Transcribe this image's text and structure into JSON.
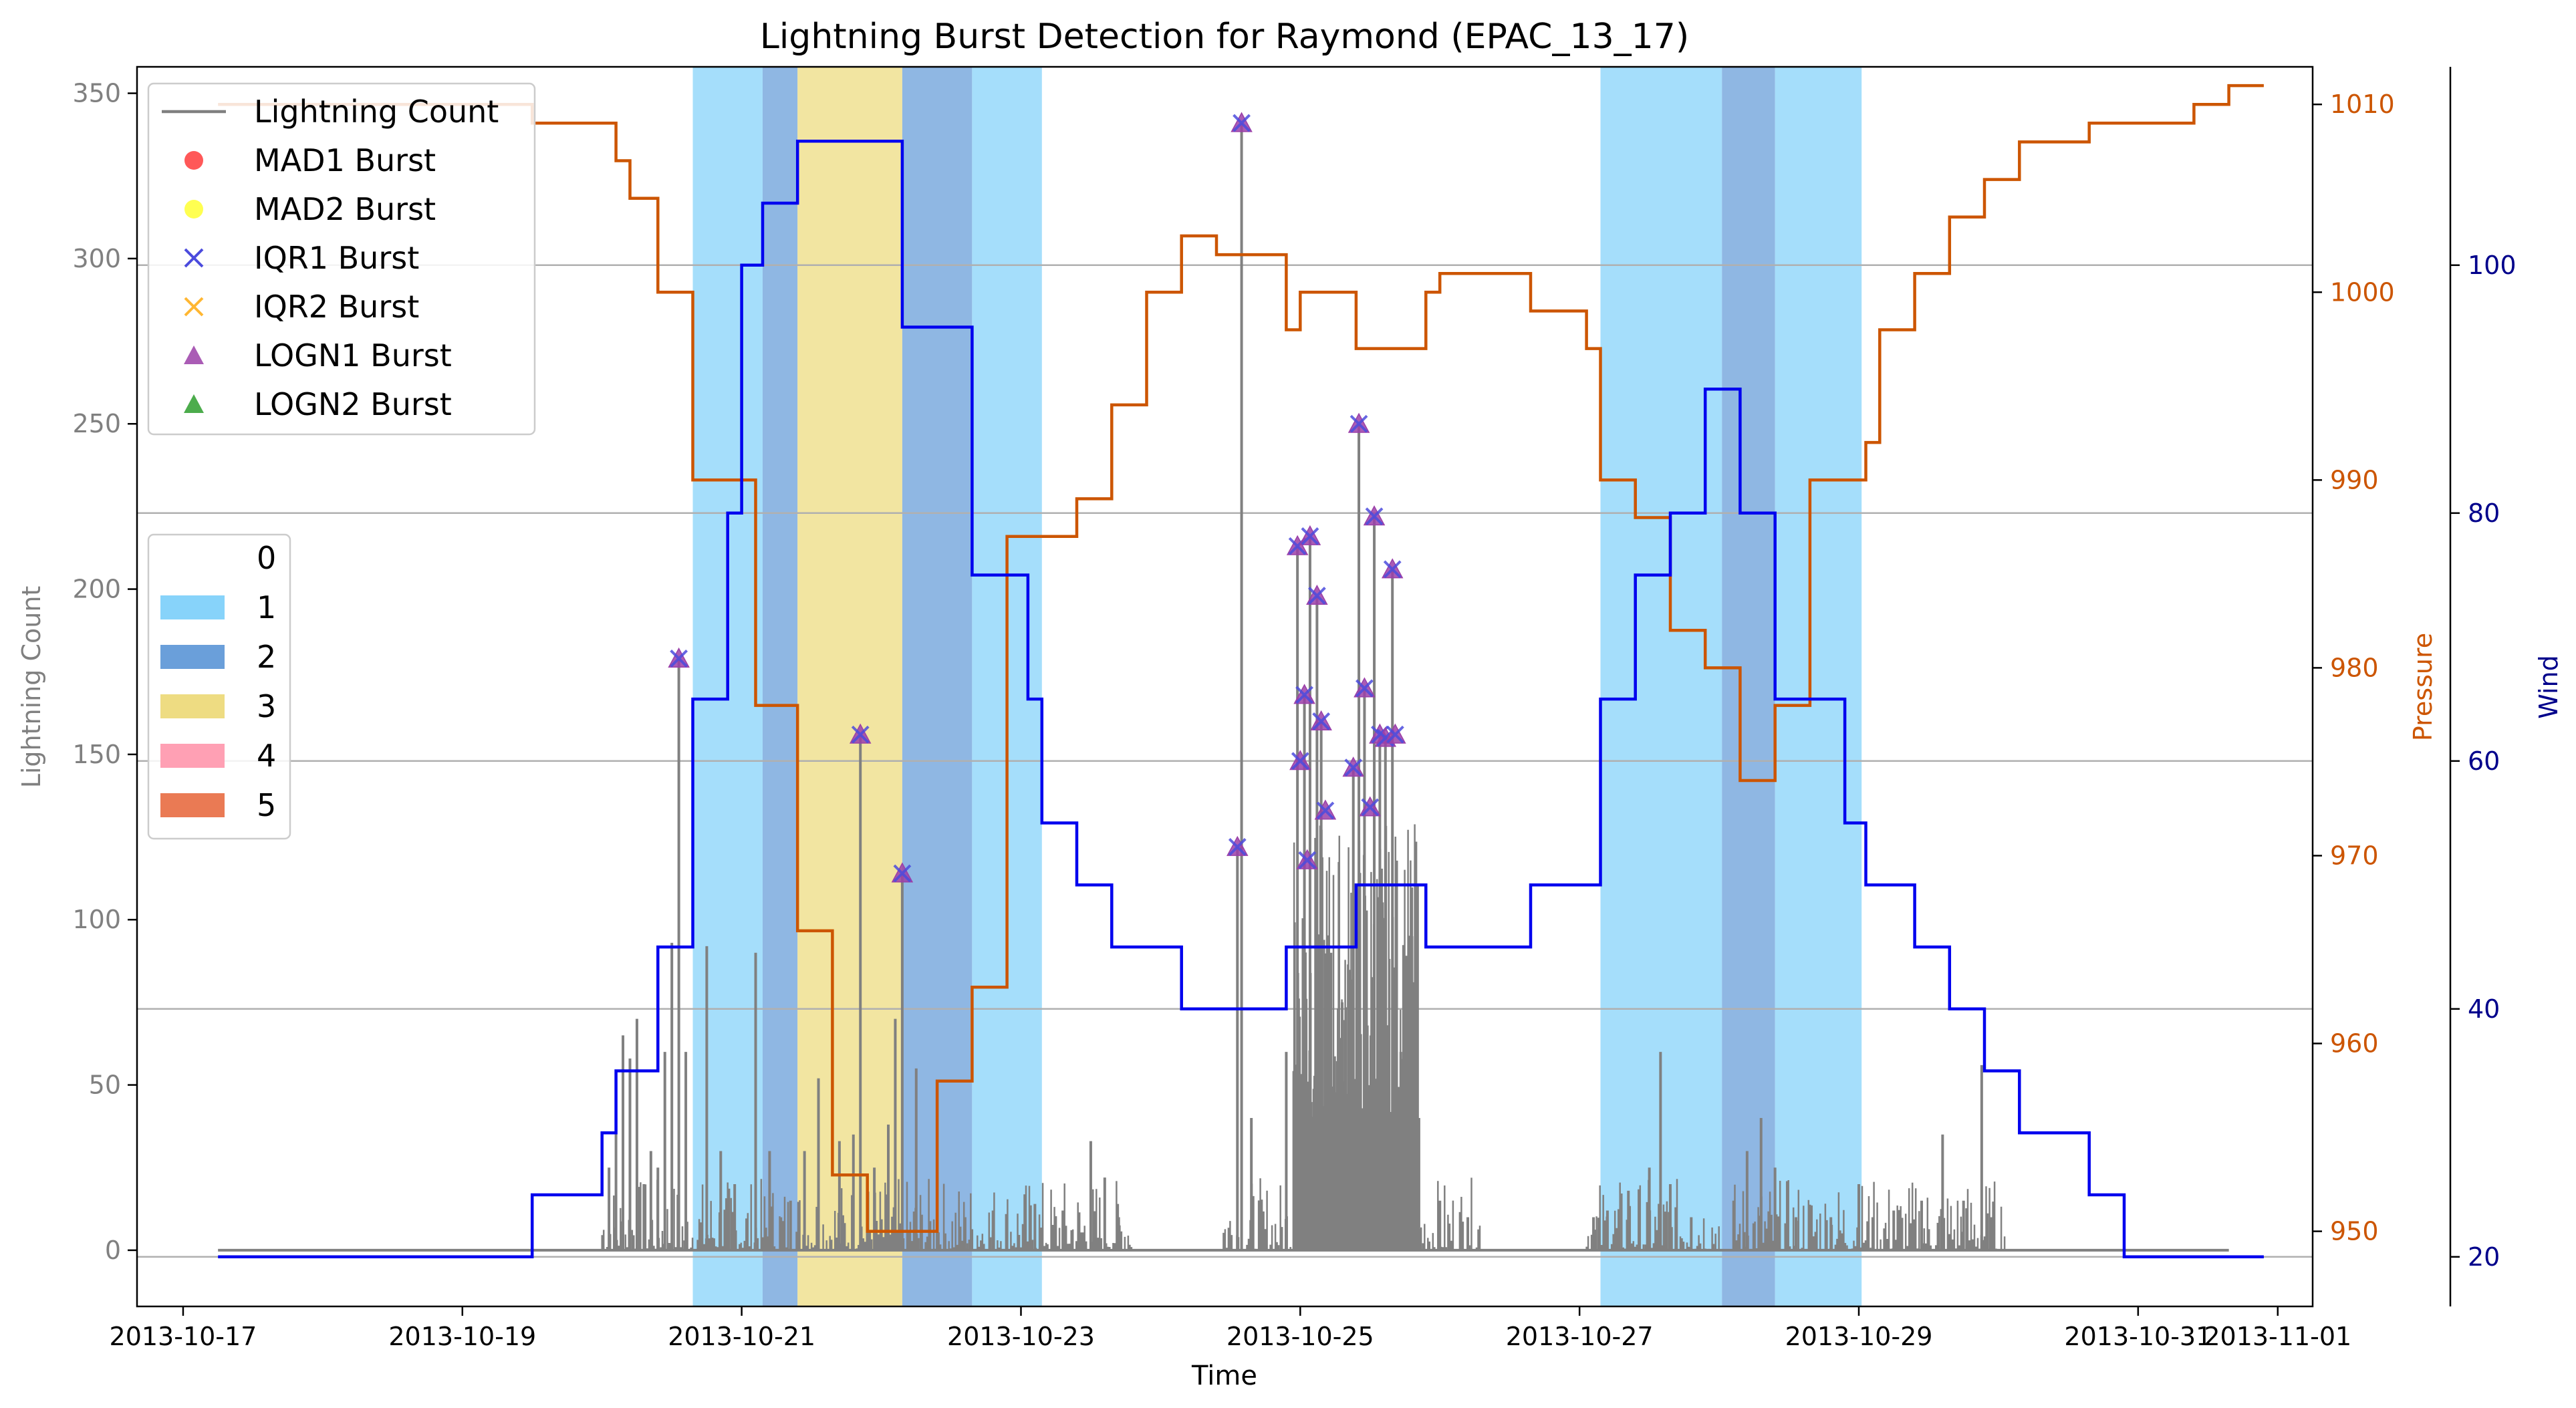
{
  "chart_data": {
    "type": "line",
    "title": "Lightning Burst Detection for Raymond (EPAC_13_17)",
    "xlabel": "Time",
    "ylabel_left": "Lightning Count",
    "ylabel_pressure": "Pressure",
    "ylabel_wind": "Wind",
    "x_ticks": [
      "2013-10-17",
      "2013-10-19",
      "2013-10-21",
      "2013-10-23",
      "2013-10-25",
      "2013-10-27",
      "2013-10-29",
      "2013-10-31",
      "2013-11-01"
    ],
    "x_tick_days": [
      17,
      19,
      21,
      23,
      25,
      27,
      29,
      31,
      32
    ],
    "xlim_days": [
      16.67,
      32.25
    ],
    "ylim_lightning": [
      -17,
      358
    ],
    "y_ticks_lightning": [
      0,
      50,
      100,
      150,
      200,
      250,
      300,
      350
    ],
    "ylim_pressure": [
      946,
      1012
    ],
    "y_ticks_pressure": [
      950,
      960,
      970,
      980,
      990,
      1000,
      1010
    ],
    "ylim_wind": [
      16,
      116
    ],
    "y_ticks_wind": [
      20,
      40,
      60,
      80,
      100
    ],
    "grid": "horizontal",
    "colors": {
      "lightning": "#808080",
      "pressure": "#cc5500",
      "wind": "#0000ee",
      "wind_axis": "#00008b",
      "band_1": "#87d3fa",
      "band_2": "#6a9fda",
      "band_3": "#eedc82",
      "band_4": "#ffa0b4",
      "band_5": "#ea7a54",
      "mad1": "#ff3b3b",
      "mad2": "#ffff33",
      "iqr1": "#4b4bdd",
      "iqr2": "#ffb732",
      "logn1": "#9b3fa8",
      "logn2": "#2d9d2d"
    },
    "legend_series": [
      "Lightning Count",
      "MAD1 Burst",
      "MAD2 Burst",
      "IQR1 Burst",
      "IQR2 Burst",
      "LOGN1 Burst",
      "LOGN2 Burst"
    ],
    "legend_series_placement": "upper-left",
    "legend_category": [
      "0",
      "1",
      "2",
      "3",
      "4",
      "5"
    ],
    "legend_category_placement": "center-left",
    "category_bands": [
      {
        "start": 20.65,
        "end": 21.15,
        "category": 1
      },
      {
        "start": 21.15,
        "end": 21.4,
        "category": 2
      },
      {
        "start": 21.4,
        "end": 22.15,
        "category": 3
      },
      {
        "start": 22.15,
        "end": 22.65,
        "category": 2
      },
      {
        "start": 22.65,
        "end": 23.15,
        "category": 1
      },
      {
        "start": 27.15,
        "end": 28.02,
        "category": 1
      },
      {
        "start": 28.02,
        "end": 28.4,
        "category": 2
      },
      {
        "start": 28.4,
        "end": 29.02,
        "category": 1
      }
    ],
    "pressure": {
      "x": [
        17.25,
        17.5,
        17.75,
        18.0,
        18.25,
        18.5,
        18.75,
        19.0,
        19.25,
        19.5,
        19.75,
        20.0,
        20.1,
        20.2,
        20.4,
        20.65,
        20.9,
        21.1,
        21.4,
        21.65,
        21.9,
        22.15,
        22.4,
        22.65,
        22.9,
        23.15,
        23.4,
        23.65,
        23.9,
        24.15,
        24.4,
        24.65,
        24.9,
        25.0,
        25.1,
        25.4,
        25.65,
        25.9,
        26.0,
        26.15,
        26.4,
        26.65,
        26.9,
        27.05,
        27.15,
        27.4,
        27.65,
        27.9,
        28.15,
        28.4,
        28.65,
        28.9,
        29.05,
        29.15,
        29.4,
        29.65,
        29.9,
        30.15,
        30.4,
        30.65,
        30.9,
        31.15,
        31.4,
        31.65,
        31.9
      ],
      "y": [
        1010,
        1010,
        1010,
        1010,
        1010,
        1010,
        1010,
        1010,
        1010,
        1009,
        1009,
        1009,
        1007,
        1005,
        1000,
        990,
        990,
        978,
        966,
        953,
        950,
        950,
        958,
        963,
        987,
        987,
        989,
        994,
        1000,
        1003,
        1002,
        1002,
        998,
        1000,
        1000,
        997,
        997,
        1000,
        1001,
        1001,
        1001,
        999,
        999,
        997,
        990,
        988,
        982,
        980,
        974,
        978,
        990,
        990,
        992,
        998,
        1001,
        1004,
        1006,
        1008,
        1008,
        1009,
        1009,
        1009,
        1010,
        1011,
        1011
      ],
      "end_x": 31.65
    },
    "wind": {
      "x": [
        17.25,
        19.5,
        19.75,
        20.0,
        20.1,
        20.2,
        20.4,
        20.65,
        20.9,
        21.0,
        21.15,
        21.4,
        21.65,
        22.15,
        22.65,
        23.05,
        23.15,
        23.4,
        23.65,
        23.9,
        24.15,
        24.9,
        25.4,
        25.65,
        25.9,
        26.15,
        26.65,
        27.15,
        27.4,
        27.65,
        27.9,
        28.15,
        28.4,
        28.65,
        28.9,
        29.05,
        29.15,
        29.4,
        29.65,
        29.9,
        30.15,
        30.4,
        30.65,
        30.9,
        31.15,
        31.4,
        31.65,
        31.9
      ],
      "y": [
        20,
        25,
        25,
        30,
        35,
        35,
        45,
        65,
        80,
        100,
        105,
        110,
        110,
        95,
        75,
        65,
        55,
        50,
        45,
        45,
        40,
        45,
        50,
        50,
        45,
        45,
        50,
        65,
        75,
        80,
        90,
        80,
        65,
        65,
        55,
        50,
        50,
        45,
        40,
        35,
        30,
        30,
        25,
        20,
        20,
        20,
        20,
        20
      ],
      "end_x": 31.65
    },
    "burst_points": [
      {
        "x": 20.55,
        "y": 179
      },
      {
        "x": 21.85,
        "y": 156
      },
      {
        "x": 22.15,
        "y": 114
      },
      {
        "x": 24.55,
        "y": 122
      },
      {
        "x": 24.58,
        "y": 341
      },
      {
        "x": 24.98,
        "y": 213
      },
      {
        "x": 25.0,
        "y": 148
      },
      {
        "x": 25.03,
        "y": 168
      },
      {
        "x": 25.05,
        "y": 118
      },
      {
        "x": 25.07,
        "y": 216
      },
      {
        "x": 25.12,
        "y": 198
      },
      {
        "x": 25.15,
        "y": 160
      },
      {
        "x": 25.18,
        "y": 133
      },
      {
        "x": 25.38,
        "y": 146
      },
      {
        "x": 25.42,
        "y": 250
      },
      {
        "x": 25.46,
        "y": 170
      },
      {
        "x": 25.5,
        "y": 134
      },
      {
        "x": 25.53,
        "y": 222
      },
      {
        "x": 25.57,
        "y": 156
      },
      {
        "x": 25.61,
        "y": 155
      },
      {
        "x": 25.66,
        "y": 206
      },
      {
        "x": 25.68,
        "y": 156
      }
    ],
    "lightning_spikes": [
      {
        "x": 20.05,
        "y": 25
      },
      {
        "x": 20.1,
        "y": 40
      },
      {
        "x": 20.15,
        "y": 65
      },
      {
        "x": 20.2,
        "y": 58
      },
      {
        "x": 20.25,
        "y": 70
      },
      {
        "x": 20.3,
        "y": 20
      },
      {
        "x": 20.35,
        "y": 30
      },
      {
        "x": 20.4,
        "y": 25
      },
      {
        "x": 20.45,
        "y": 60
      },
      {
        "x": 20.5,
        "y": 93
      },
      {
        "x": 20.55,
        "y": 179
      },
      {
        "x": 20.6,
        "y": 60
      },
      {
        "x": 20.75,
        "y": 92
      },
      {
        "x": 20.85,
        "y": 30
      },
      {
        "x": 20.95,
        "y": 20
      },
      {
        "x": 21.1,
        "y": 90
      },
      {
        "x": 21.2,
        "y": 30
      },
      {
        "x": 21.35,
        "y": 15
      },
      {
        "x": 21.45,
        "y": 30
      },
      {
        "x": 21.55,
        "y": 52
      },
      {
        "x": 21.7,
        "y": 33
      },
      {
        "x": 21.8,
        "y": 35
      },
      {
        "x": 21.85,
        "y": 156
      },
      {
        "x": 21.95,
        "y": 25
      },
      {
        "x": 22.05,
        "y": 38
      },
      {
        "x": 22.1,
        "y": 70
      },
      {
        "x": 22.15,
        "y": 114
      },
      {
        "x": 22.25,
        "y": 55
      },
      {
        "x": 22.4,
        "y": 22
      },
      {
        "x": 22.6,
        "y": 10
      },
      {
        "x": 22.8,
        "y": 12
      },
      {
        "x": 23.1,
        "y": 14
      },
      {
        "x": 23.3,
        "y": 12
      },
      {
        "x": 23.5,
        "y": 33
      },
      {
        "x": 23.6,
        "y": 22
      },
      {
        "x": 23.7,
        "y": 10
      },
      {
        "x": 24.55,
        "y": 122
      },
      {
        "x": 24.58,
        "y": 341
      },
      {
        "x": 24.65,
        "y": 40
      },
      {
        "x": 24.9,
        "y": 60
      },
      {
        "x": 24.98,
        "y": 213
      },
      {
        "x": 25.03,
        "y": 168
      },
      {
        "x": 25.07,
        "y": 216
      },
      {
        "x": 25.12,
        "y": 198
      },
      {
        "x": 25.15,
        "y": 160
      },
      {
        "x": 25.22,
        "y": 90
      },
      {
        "x": 25.3,
        "y": 75
      },
      {
        "x": 25.38,
        "y": 146
      },
      {
        "x": 25.42,
        "y": 250
      },
      {
        "x": 25.46,
        "y": 170
      },
      {
        "x": 25.53,
        "y": 222
      },
      {
        "x": 25.57,
        "y": 156
      },
      {
        "x": 25.61,
        "y": 155
      },
      {
        "x": 25.66,
        "y": 206
      },
      {
        "x": 25.72,
        "y": 60
      },
      {
        "x": 25.8,
        "y": 95
      },
      {
        "x": 25.85,
        "y": 40
      },
      {
        "x": 26.0,
        "y": 15
      },
      {
        "x": 26.2,
        "y": 10
      },
      {
        "x": 27.1,
        "y": 10
      },
      {
        "x": 27.2,
        "y": 12
      },
      {
        "x": 27.35,
        "y": 18
      },
      {
        "x": 27.5,
        "y": 25
      },
      {
        "x": 27.58,
        "y": 60
      },
      {
        "x": 27.65,
        "y": 20
      },
      {
        "x": 27.8,
        "y": 10
      },
      {
        "x": 28.2,
        "y": 30
      },
      {
        "x": 28.3,
        "y": 40
      },
      {
        "x": 28.4,
        "y": 25
      },
      {
        "x": 28.55,
        "y": 10
      },
      {
        "x": 28.8,
        "y": 10
      },
      {
        "x": 29.0,
        "y": 20
      },
      {
        "x": 29.1,
        "y": 10
      },
      {
        "x": 29.25,
        "y": 12
      },
      {
        "x": 29.45,
        "y": 15
      },
      {
        "x": 29.6,
        "y": 35
      },
      {
        "x": 29.75,
        "y": 15
      },
      {
        "x": 29.88,
        "y": 56
      },
      {
        "x": 29.95,
        "y": 10
      }
    ]
  }
}
